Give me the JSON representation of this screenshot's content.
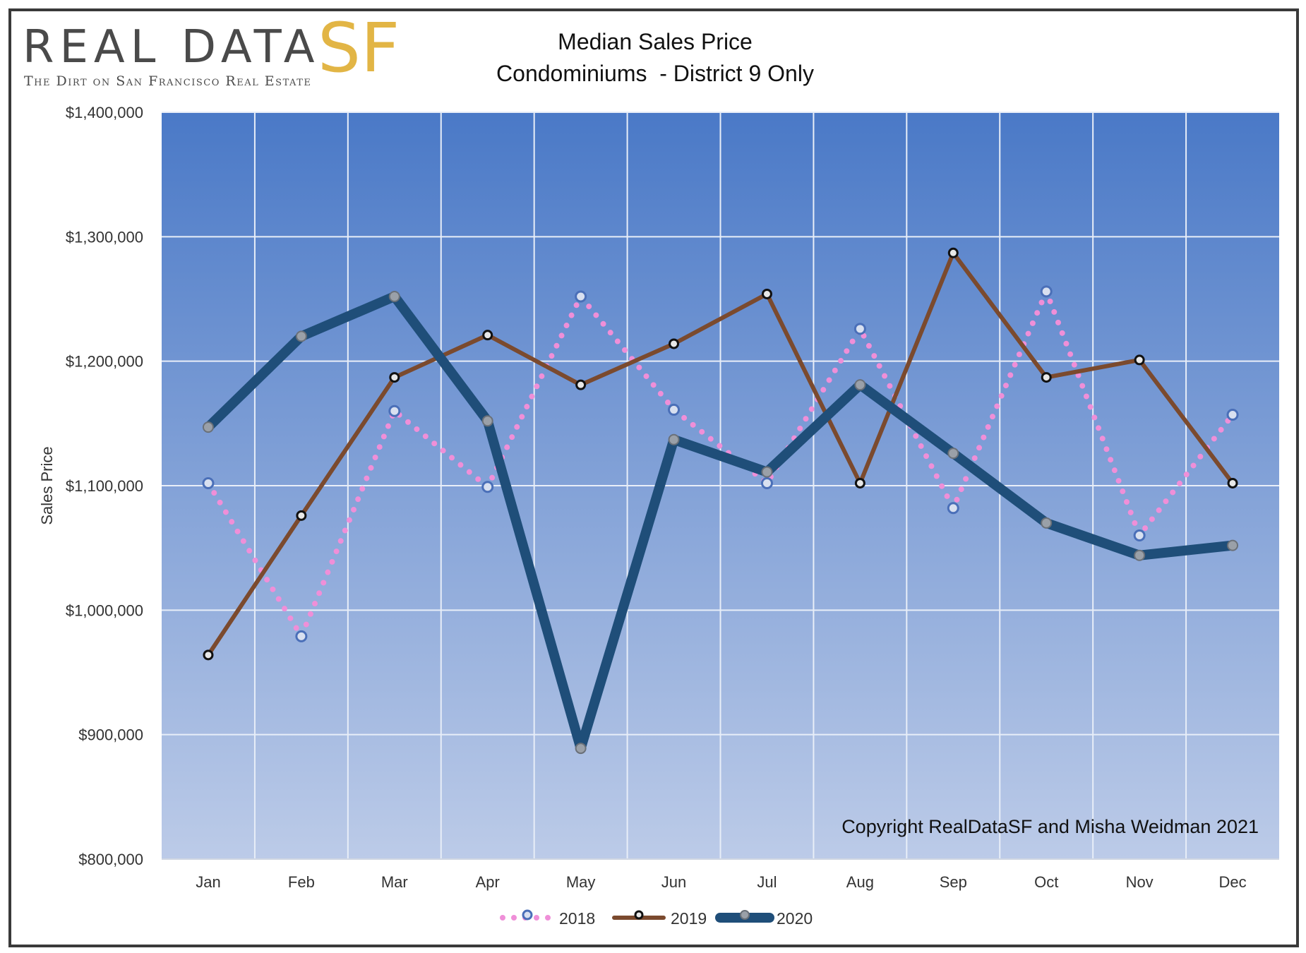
{
  "logo": {
    "main": "REAL DATA",
    "accent": "SF",
    "tagline": "The Dirt on San Francisco Real Estate"
  },
  "chart_data": {
    "type": "line",
    "title": "Median Sales Price",
    "subtitle": "Condominiums  - District 9 Only",
    "xlabel": "",
    "ylabel": "Sales Price",
    "ylim": [
      800000,
      1400000
    ],
    "yticks": [
      "$800,000",
      "$900,000",
      "$1,000,000",
      "$1,100,000",
      "$1,200,000",
      "$1,300,000",
      "$1,400,000"
    ],
    "ytick_values": [
      800000,
      900000,
      1000000,
      1100000,
      1200000,
      1300000,
      1400000
    ],
    "categories": [
      "Jan",
      "Feb",
      "Mar",
      "Apr",
      "May",
      "Jun",
      "Jul",
      "Aug",
      "Sep",
      "Oct",
      "Nov",
      "Dec"
    ],
    "grid": true,
    "legend_position": "bottom",
    "annotation": "Copyright RealDataSF and Misha Weidman 2021",
    "series": [
      {
        "name": "2018",
        "color": "#ef8fd8",
        "style": "dotted",
        "values": [
          1102000,
          979000,
          1160000,
          1099000,
          1252000,
          1161000,
          1102000,
          1226000,
          1082000,
          1256000,
          1060000,
          1157000
        ]
      },
      {
        "name": "2019",
        "color": "#7b4a2e",
        "style": "solid",
        "values": [
          964000,
          1076000,
          1187000,
          1221000,
          1181000,
          1214000,
          1254000,
          1102000,
          1287000,
          1187000,
          1201000,
          1102000
        ]
      },
      {
        "name": "2020",
        "color": "#1f4e79",
        "style": "thick",
        "values": [
          1147000,
          1220000,
          1252000,
          1152000,
          889000,
          1137000,
          1111000,
          1181000,
          1126000,
          1070000,
          1044000,
          1052000
        ]
      }
    ]
  }
}
